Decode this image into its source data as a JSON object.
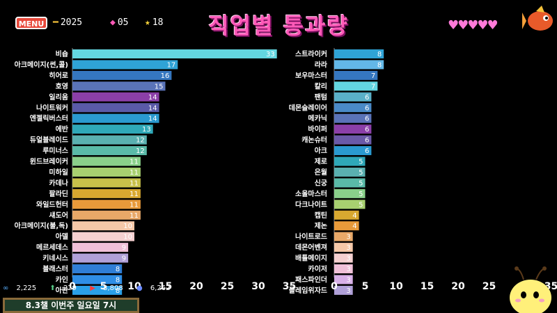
{
  "header": {
    "menu_label": "MENU",
    "year": "2025",
    "gems": "05",
    "stars": "18",
    "title": "직업별 통과량",
    "hearts": "♥♥♥♥♥"
  },
  "footer": {
    "stat1": "2,225",
    "stat2": "229",
    "stat3": "3,808",
    "stat4": "6,262",
    "banner": "8.3챌 이번주 일요일 7시"
  },
  "chart_data": [
    {
      "type": "bar",
      "orientation": "horizontal",
      "xlim": [
        0,
        35
      ],
      "ticks": [
        0,
        5,
        10,
        15,
        20,
        25,
        30,
        35
      ],
      "categories": [
        "비숍",
        "아크메이지(썬,콜)",
        "히어로",
        "호영",
        "일리움",
        "나이트워커",
        "엔젤릭버스터",
        "에반",
        "듀얼블레이드",
        "루미너스",
        "윈드브레이커",
        "미하일",
        "카데나",
        "팔라딘",
        "와일드헌터",
        "섀도어",
        "아크메이지(불,독)",
        "아델",
        "메르세데스",
        "키네시스",
        "블래스터",
        "카인",
        "아란"
      ],
      "values": [
        33,
        17,
        16,
        15,
        14,
        14,
        14,
        13,
        12,
        12,
        11,
        11,
        11,
        11,
        11,
        11,
        10,
        10,
        9,
        9,
        8,
        8,
        8
      ],
      "colors": [
        "#63d6e0",
        "#2fa3d6",
        "#3577c0",
        "#5a73b8",
        "#8b3fa8",
        "#5a5aa8",
        "#2a9ad0",
        "#2fa8b8",
        "#5ab0b0",
        "#5abaa8",
        "#8ad08a",
        "#a8d070",
        "#c8c04a",
        "#d8a830",
        "#e89a3a",
        "#e8a868",
        "#f5c8a8",
        "#f5d0d0",
        "#f0c0d8",
        "#b0a0d8",
        "#2f7ed6",
        "#2f8ee6",
        "#2aa0e8"
      ]
    },
    {
      "type": "bar",
      "orientation": "horizontal",
      "xlim": [
        0,
        35
      ],
      "ticks": [
        0,
        5,
        10,
        15,
        20,
        25,
        35
      ],
      "tick_labels": [
        "0",
        "5",
        "10",
        "15",
        "20",
        "25",
        "35"
      ],
      "categories": [
        "스트라이커",
        "라라",
        "보우마스터",
        "칼리",
        "팬텀",
        "데몬슬레이어",
        "메카닉",
        "바이퍼",
        "캐논슈터",
        "아크",
        "제로",
        "은월",
        "신궁",
        "소울마스터",
        "다크나이트",
        "캡틴",
        "제논",
        "나이트로드",
        "데몬어벤져",
        "배틀메이지",
        "카이저",
        "패스파인더",
        "플레임위자드"
      ],
      "values": [
        8,
        8,
        7,
        7,
        6,
        6,
        6,
        6,
        6,
        6,
        5,
        5,
        5,
        5,
        5,
        4,
        4,
        3,
        3,
        3,
        3,
        3,
        3
      ],
      "colors": [
        "#2fa3d6",
        "#63b8e8",
        "#3577c0",
        "#63d6e0",
        "#5ab0c8",
        "#4a8ac8",
        "#5a73b8",
        "#8b3fa8",
        "#6a5aa8",
        "#2a9ad0",
        "#2fa8b8",
        "#5ab0b0",
        "#5abaa8",
        "#8ad08a",
        "#a8d070",
        "#d8a830",
        "#e89a3a",
        "#e8a868",
        "#f5c8a8",
        "#f5d0d0",
        "#f0c0d8",
        "#d8b0e8",
        "#b0a0d8"
      ]
    }
  ]
}
